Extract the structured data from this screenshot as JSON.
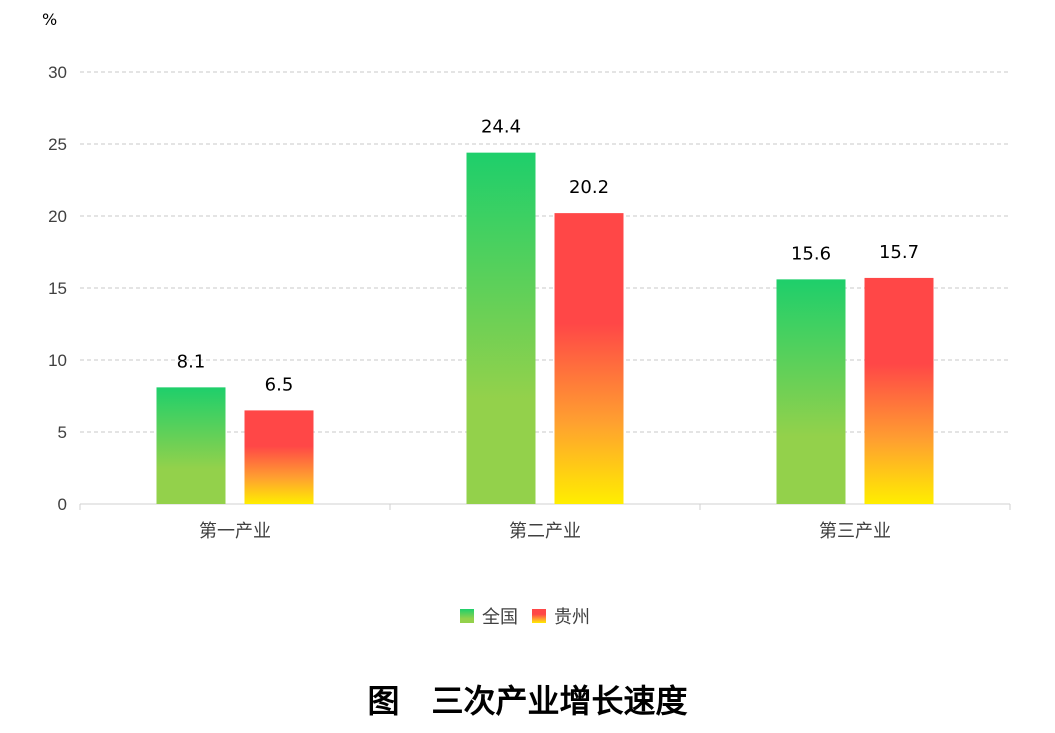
{
  "chart_data": {
    "type": "bar",
    "unit": "%",
    "categories": [
      "第一产业",
      "第二产业",
      "第三产业"
    ],
    "series": [
      {
        "name": "全国",
        "values": [
          8.1,
          24.4,
          15.6
        ],
        "value_labels": [
          "8.1",
          "24.4",
          "15.6"
        ],
        "gradient": [
          "#1ecf6b",
          "#93d14b"
        ]
      },
      {
        "name": "贵州",
        "values": [
          6.5,
          20.2,
          15.7
        ],
        "value_labels": [
          "6.5",
          "20.2",
          "15.7"
        ],
        "gradient": [
          "#ff4747",
          "#ff4747",
          "#ffa030",
          "#ffee00"
        ]
      }
    ],
    "ylim": [
      0,
      30
    ],
    "yticks": [
      "0",
      "5",
      "10",
      "15",
      "20",
      "25",
      "30"
    ],
    "grid": true,
    "legend": "bottom-center",
    "caption": "图　三次产业增长速度"
  }
}
